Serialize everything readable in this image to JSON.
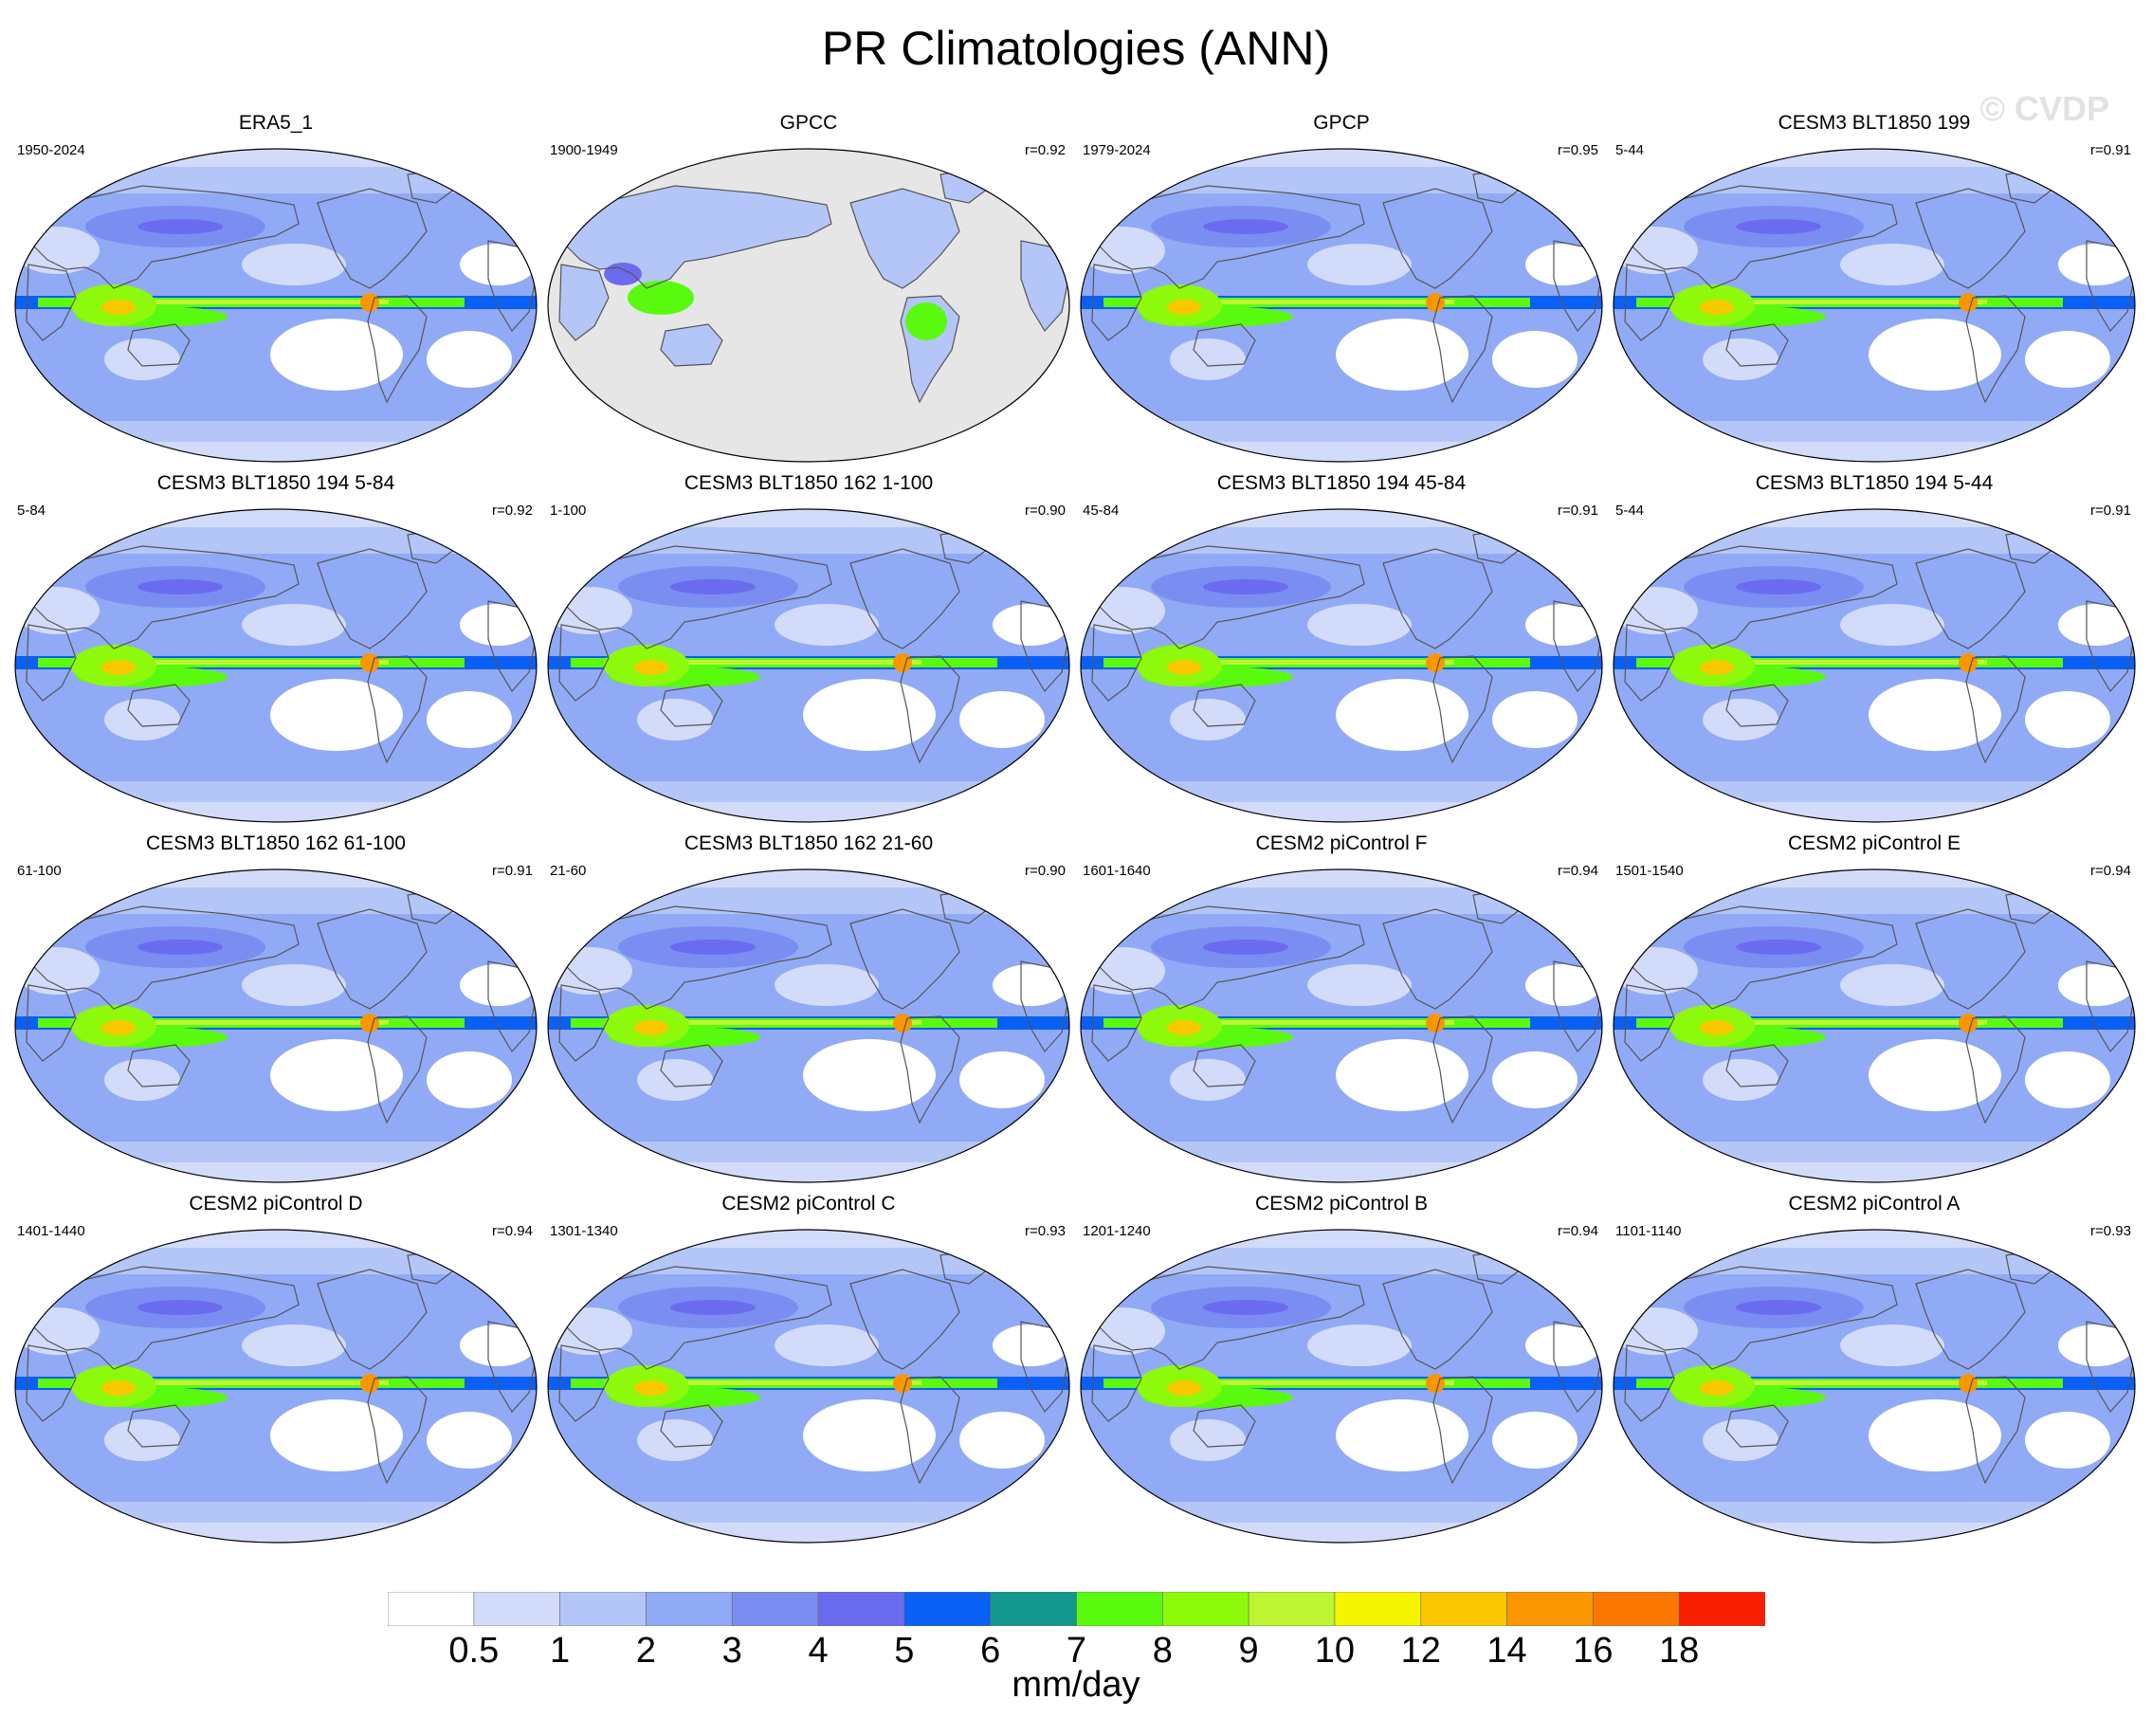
{
  "title": "PR Climatologies (ANN)",
  "watermark": "© CVDP",
  "panels": [
    {
      "title": "ERA5_1",
      "period": "1950-2024",
      "corr": "",
      "style": "model"
    },
    {
      "title": "GPCC",
      "period": "1900-1949",
      "corr": "r=0.92",
      "style": "land"
    },
    {
      "title": "GPCP",
      "period": "1979-2024",
      "corr": "r=0.95",
      "style": "model"
    },
    {
      "title": "CESM3 BLT1850 199",
      "period": "5-44",
      "corr": "r=0.91",
      "style": "model"
    },
    {
      "title": "CESM3 BLT1850 194 5-84",
      "period": "5-84",
      "corr": "r=0.92",
      "style": "model"
    },
    {
      "title": "CESM3 BLT1850 162 1-100",
      "period": "1-100",
      "corr": "r=0.90",
      "style": "model"
    },
    {
      "title": "CESM3 BLT1850 194 45-84",
      "period": "45-84",
      "corr": "r=0.91",
      "style": "model"
    },
    {
      "title": "CESM3 BLT1850 194 5-44",
      "period": "5-44",
      "corr": "r=0.91",
      "style": "model"
    },
    {
      "title": "CESM3 BLT1850 162 61-100",
      "period": "61-100",
      "corr": "r=0.91",
      "style": "model"
    },
    {
      "title": "CESM3 BLT1850 162 21-60",
      "period": "21-60",
      "corr": "r=0.90",
      "style": "model"
    },
    {
      "title": "CESM2 piControl F",
      "period": "1601-1640",
      "corr": "r=0.94",
      "style": "model"
    },
    {
      "title": "CESM2 piControl E",
      "period": "1501-1540",
      "corr": "r=0.94",
      "style": "model"
    },
    {
      "title": "CESM2 piControl D",
      "period": "1401-1440",
      "corr": "r=0.94",
      "style": "model"
    },
    {
      "title": "CESM2 piControl C",
      "period": "1301-1340",
      "corr": "r=0.93",
      "style": "model"
    },
    {
      "title": "CESM2 piControl B",
      "period": "1201-1240",
      "corr": "r=0.94",
      "style": "model"
    },
    {
      "title": "CESM2 piControl A",
      "period": "1101-1140",
      "corr": "r=0.93",
      "style": "model"
    }
  ],
  "colorbar": {
    "units": "mm/day",
    "levels": [
      "0.5",
      "1",
      "2",
      "3",
      "4",
      "5",
      "6",
      "7",
      "8",
      "9",
      "10",
      "12",
      "14",
      "16",
      "18"
    ],
    "colors": [
      "#ffffff",
      "#d2dcfa",
      "#b4c6f8",
      "#91aaf6",
      "#7a8ef2",
      "#6b6bf0",
      "#0a5ff5",
      "#13978e",
      "#5afa0f",
      "#8cfa0a",
      "#bef532",
      "#f5f500",
      "#fac800",
      "#fa9600",
      "#fa7800",
      "#fa1e00"
    ]
  }
}
